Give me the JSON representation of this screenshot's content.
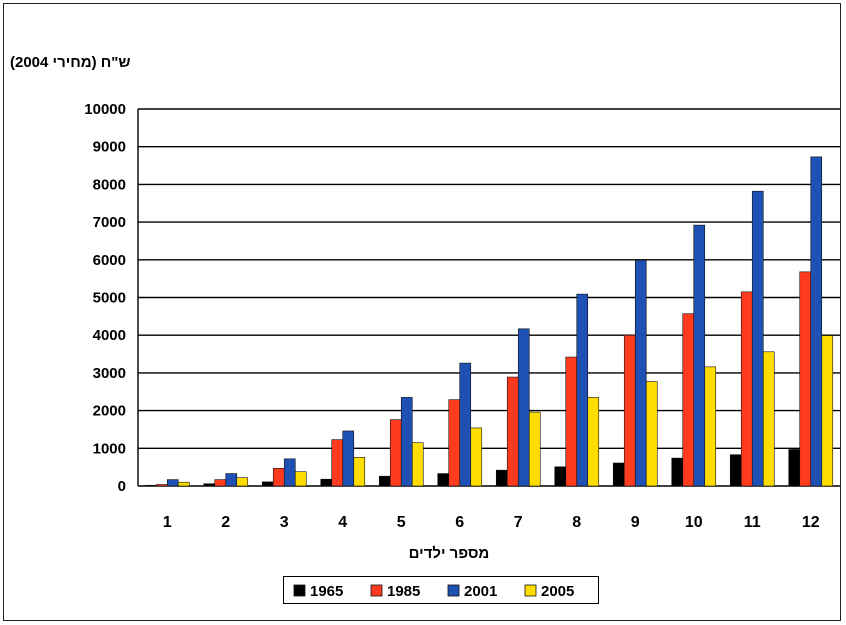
{
  "chart_data": {
    "type": "bar",
    "ylabel": "ש\"ח (מחירי 2004)",
    "xlabel": "מספר ילדים",
    "categories": [
      "1",
      "2",
      "3",
      "4",
      "5",
      "6",
      "7",
      "8",
      "9",
      "10",
      "11",
      "12"
    ],
    "ylim": [
      0,
      10000
    ],
    "yticks": [
      "0",
      "1000",
      "2000",
      "3000",
      "4000",
      "5000",
      "6000",
      "7000",
      "8000",
      "9000",
      "10000"
    ],
    "grid": true,
    "legend_position": "bottom",
    "series": [
      {
        "name": "1965",
        "color": "#000000",
        "values": [
          20,
          60,
          110,
          180,
          260,
          330,
          420,
          510,
          610,
          740,
          830,
          970
        ]
      },
      {
        "name": "1985",
        "color": "#ff3b1f",
        "values": [
          40,
          170,
          470,
          1230,
          1760,
          2290,
          2890,
          3420,
          4000,
          4570,
          5150,
          5680
        ]
      },
      {
        "name": "2001",
        "color": "#1f50b4",
        "values": [
          170,
          330,
          720,
          1460,
          2350,
          3260,
          4170,
          5090,
          5990,
          6920,
          7820,
          8730
        ]
      },
      {
        "name": "2005",
        "color": "#ffdd00",
        "values": [
          100,
          220,
          380,
          760,
          1150,
          1540,
          1960,
          2350,
          2770,
          3160,
          3560,
          3990
        ]
      }
    ]
  }
}
